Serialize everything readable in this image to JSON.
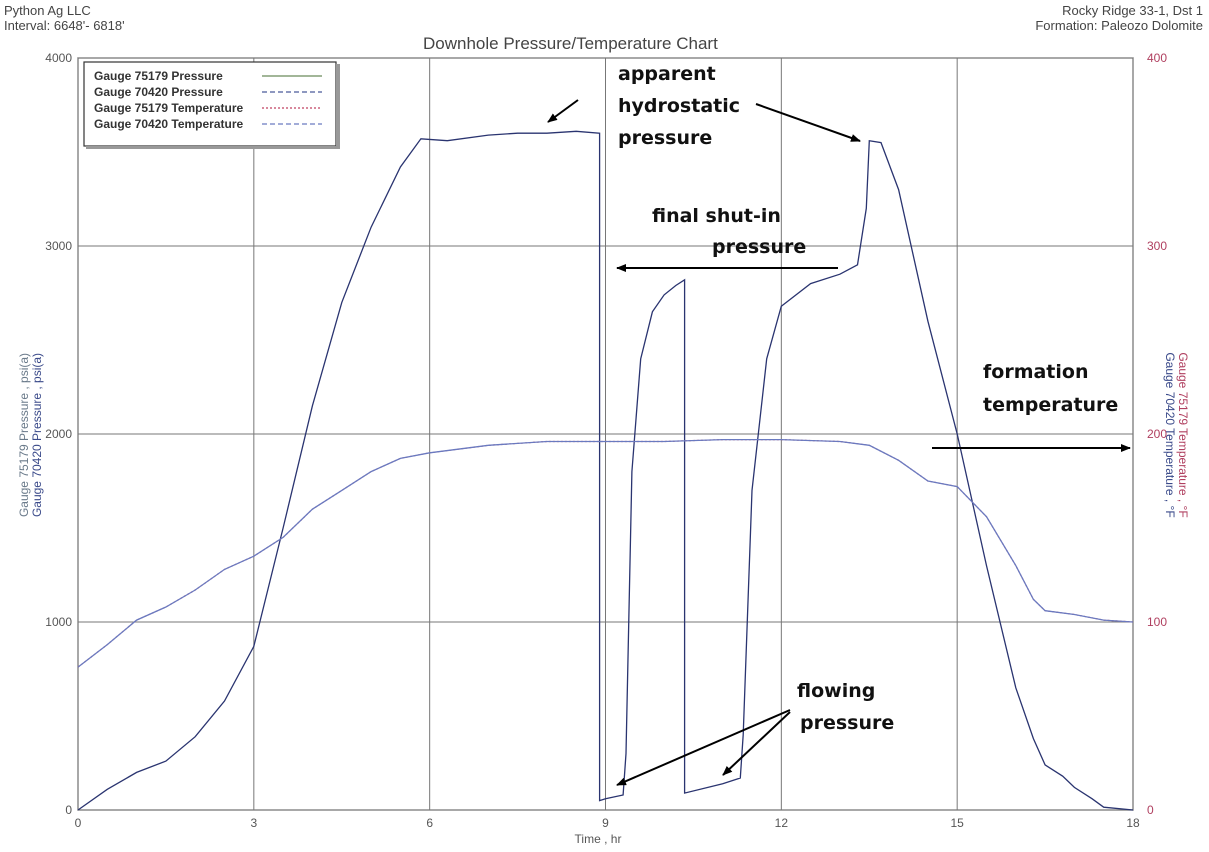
{
  "header": {
    "company": "Python Ag LLC",
    "interval": "Interval: 6648'- 6818'",
    "well": "Rocky Ridge 33-1, Dst 1",
    "formation": "Formation: Paleozo Dolomite"
  },
  "chart_data": {
    "type": "line",
    "title": "Downhole Pressure/Temperature Chart",
    "xlabel": "Time , hr",
    "ylabel_left": [
      "Gauge 75179 Pressure , psi(a)",
      "Gauge 70420 Pressure , psi(a)"
    ],
    "ylabel_right": [
      "Gauge 75179 Temperature , °F",
      "Gauge 70420 Temperature , °F"
    ],
    "xlim": [
      0,
      18
    ],
    "ylim_left": [
      0,
      4000
    ],
    "ylim_right": [
      0,
      400
    ],
    "x_ticks": [
      "0",
      "3",
      "6",
      "9",
      "12",
      "15",
      "18"
    ],
    "y_ticks_left": [
      "0",
      "1000",
      "2000",
      "3000",
      "4000"
    ],
    "y_ticks_right": [
      "0",
      "100",
      "200",
      "300",
      "400"
    ],
    "grid": true,
    "legend_position": "top-left",
    "legend": [
      {
        "label": "Gauge 75179 Pressure",
        "color": "#6a8a5a",
        "dash": "solid"
      },
      {
        "label": "Gauge 70420 Pressure",
        "color": "#4a5a9a",
        "dash": "dashed"
      },
      {
        "label": "Gauge 75179 Temperature",
        "color": "#c04060",
        "dash": "dotted"
      },
      {
        "label": "Gauge 70420 Temperature",
        "color": "#6a7ac0",
        "dash": "dashed"
      }
    ],
    "series": [
      {
        "name": "Gauge 70420 Pressure",
        "axis": "left",
        "color": "#2a3470",
        "x": [
          0,
          0.5,
          1.0,
          1.5,
          2.0,
          2.5,
          3.0,
          3.5,
          4.0,
          4.5,
          5.0,
          5.5,
          5.85,
          6.3,
          7.0,
          7.5,
          8.0,
          8.5,
          8.9,
          8.9,
          9.0,
          9.3,
          9.35,
          9.45,
          9.6,
          9.8,
          10.0,
          10.2,
          10.35,
          10.35,
          11.0,
          11.3,
          11.35,
          11.5,
          11.75,
          12.0,
          12.5,
          13.0,
          13.3,
          13.45,
          13.5,
          13.7,
          14.0,
          14.5,
          15.0,
          15.5,
          16.0,
          16.3,
          16.5,
          16.8,
          17.0,
          17.3,
          17.5,
          18.0
        ],
        "y": [
          0,
          110,
          200,
          260,
          390,
          580,
          870,
          1500,
          2150,
          2700,
          3100,
          3420,
          3570,
          3560,
          3590,
          3600,
          3600,
          3610,
          3600,
          50,
          60,
          80,
          300,
          1800,
          2400,
          2650,
          2740,
          2790,
          2820,
          90,
          140,
          170,
          400,
          1700,
          2400,
          2680,
          2800,
          2850,
          2900,
          3200,
          3560,
          3550,
          3300,
          2600,
          2000,
          1300,
          650,
          380,
          240,
          180,
          120,
          60,
          15,
          0
        ]
      },
      {
        "name": "Gauge 70420 Temperature",
        "axis": "right",
        "color": "#6a7ac0",
        "x": [
          0,
          0.5,
          1.0,
          1.5,
          2.0,
          2.5,
          3.0,
          3.5,
          4.0,
          4.5,
          5.0,
          5.5,
          6.0,
          7.0,
          8.0,
          9.0,
          10.0,
          11.0,
          12.0,
          13.0,
          13.5,
          14.0,
          14.5,
          15.0,
          15.5,
          16.0,
          16.3,
          16.5,
          17.0,
          17.5,
          18.0
        ],
        "y": [
          76,
          88,
          101,
          108,
          117,
          128,
          135,
          145,
          160,
          170,
          180,
          187,
          190,
          194,
          196,
          196,
          196,
          197,
          197,
          196,
          194,
          186,
          175,
          172,
          156,
          130,
          112,
          106,
          104,
          101,
          100
        ]
      }
    ],
    "annotations": [
      {
        "text": [
          "apparent",
          "hydrostatic",
          "pressure"
        ]
      },
      {
        "text": [
          "final shut-in",
          "pressure"
        ]
      },
      {
        "text": [
          "formation",
          "temperature"
        ]
      },
      {
        "text": [
          "flowing",
          "pressure"
        ]
      }
    ]
  }
}
